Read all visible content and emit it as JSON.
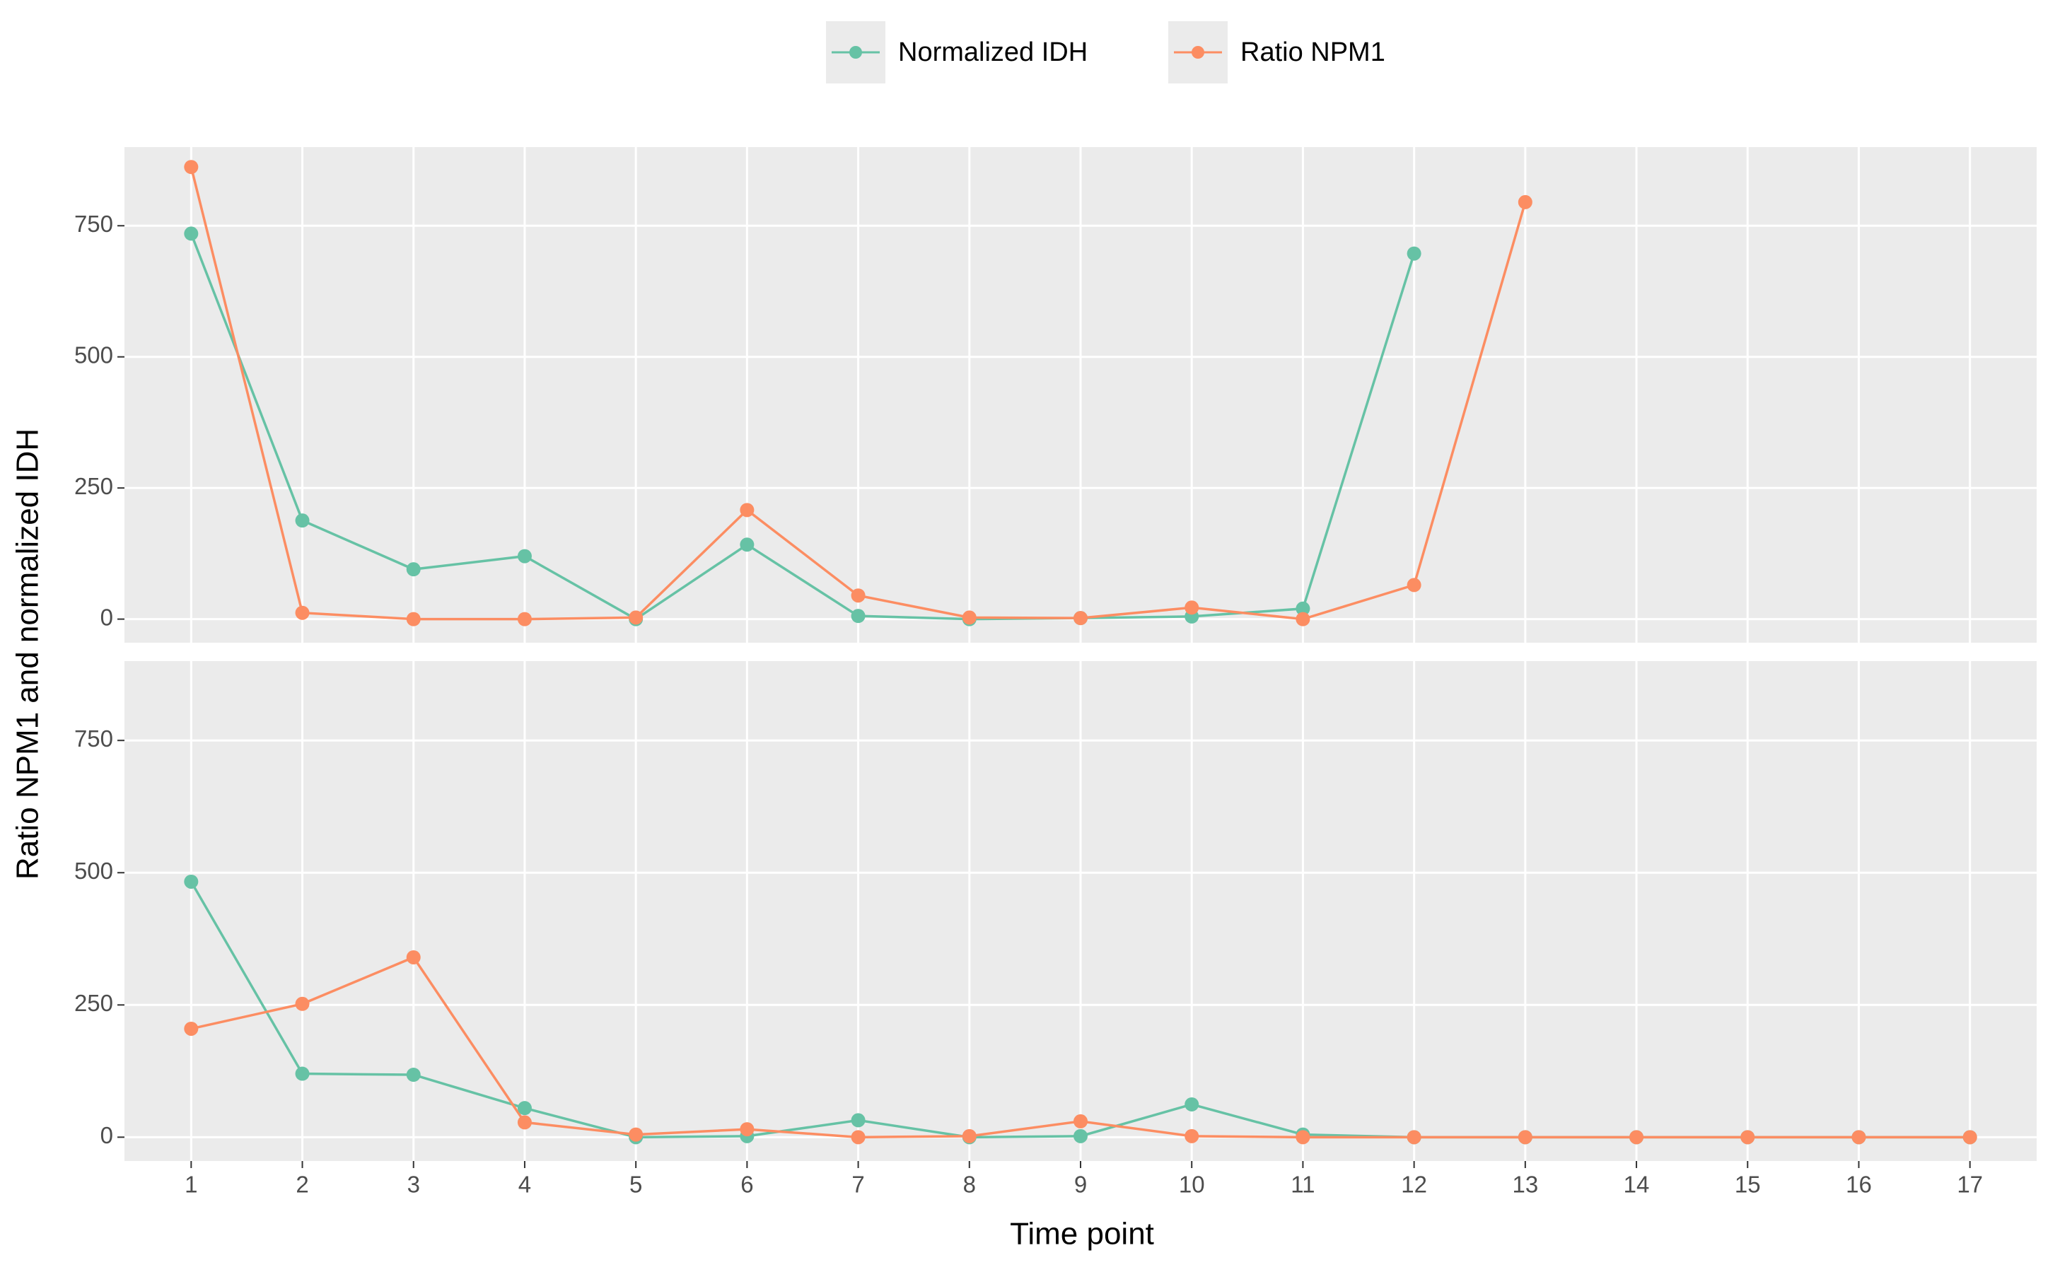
{
  "chart_data": {
    "type": "line",
    "xlabel": "Time point",
    "ylabel": "Ratio NPM1 and normalized IDH",
    "legend": "top",
    "grid": true,
    "x": [
      1,
      2,
      3,
      4,
      5,
      6,
      7,
      8,
      9,
      10,
      11,
      12,
      13,
      14,
      15,
      16,
      17
    ],
    "xlim": [
      0.4,
      17.6
    ],
    "xticks": [
      1,
      2,
      3,
      4,
      5,
      6,
      7,
      8,
      9,
      10,
      11,
      12,
      13,
      14,
      15,
      16,
      17
    ],
    "ylim": [
      -45,
      900
    ],
    "yticks": [
      0,
      250,
      500,
      750
    ],
    "series": [
      {
        "name": "Normalized IDH",
        "color": "#66c2a5",
        "values": [
          [
            735,
            188,
            95,
            120,
            0,
            142,
            6,
            0,
            2,
            5,
            20,
            697,
            null,
            null,
            null,
            null,
            null
          ],
          [
            483,
            120,
            118,
            55,
            0,
            2,
            32,
            0,
            2,
            62,
            5,
            0,
            0,
            0,
            0,
            0,
            0
          ]
        ]
      },
      {
        "name": "Ratio NPM1",
        "color": "#fc8d62",
        "values": [
          [
            862,
            12,
            0,
            0,
            3,
            208,
            45,
            3,
            2,
            22,
            0,
            65,
            795,
            null,
            null,
            null,
            null
          ],
          [
            205,
            252,
            340,
            28,
            5,
            15,
            0,
            2,
            30,
            2,
            0,
            0,
            0,
            0,
            0,
            0,
            0
          ]
        ]
      }
    ]
  }
}
